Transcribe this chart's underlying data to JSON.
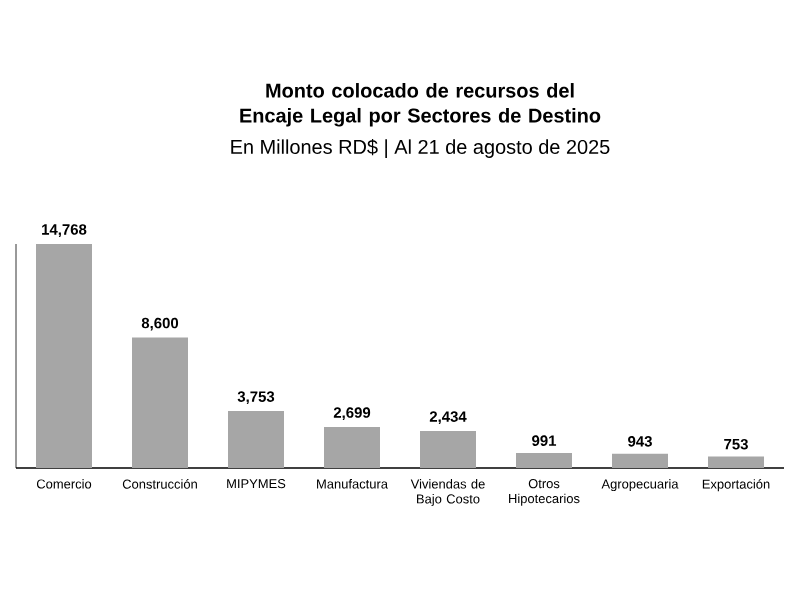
{
  "chart_data": {
    "type": "bar",
    "title": "Monto colocado de recursos del Encaje Legal por Sectores de Destino",
    "subtitle": "En Millones  RD$ | Al 21 de agosto de 2025",
    "categories": [
      "Comercio",
      "Construcción",
      "MIPYMES",
      "Manufactura",
      "Viviendas de Bajo Costo",
      "Otros Hipotecarios",
      "Agropecuaria",
      "Exportación"
    ],
    "values": [
      14768,
      8600,
      3753,
      2699,
      2434,
      991,
      943,
      753
    ],
    "value_labels": [
      "14,768",
      "8,600",
      "3,753",
      "2,699",
      "2,434",
      "991",
      "943",
      "753"
    ],
    "color": "#a6a6a6",
    "relative": false
  }
}
